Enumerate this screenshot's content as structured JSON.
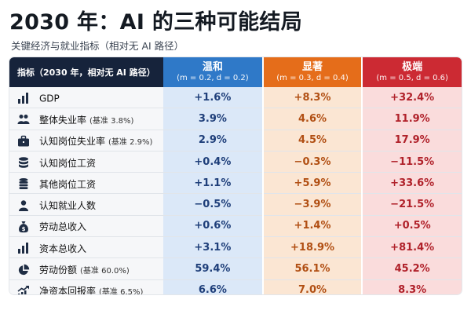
{
  "title": "2030 年：AI 的三种可能结局",
  "subtitle": "关键经济与就业指标（相对无 AI 路径）",
  "table": {
    "indicator_header": "指标（2030 年，相对无 AI 路径）",
    "scenarios": [
      {
        "name": "温和",
        "param": "(m = 0.2, d = 0.2)",
        "color": "#2f79c8"
      },
      {
        "name": "显著",
        "param": "(m = 0.3, d = 0.4)",
        "color": "#e56d1a"
      },
      {
        "name": "极端",
        "param": "(m = 0.5, d = 0.6)",
        "color": "#cc2a33"
      }
    ],
    "rows": [
      {
        "icon": "bar-chart-icon",
        "label": "GDP",
        "base": "",
        "values": [
          "+1.6%",
          "+8.3%",
          "+32.4%"
        ]
      },
      {
        "icon": "people-icon",
        "label": "整体失业率",
        "base": "(基准 3.8%)",
        "values": [
          "3.9%",
          "4.6%",
          "11.9%"
        ]
      },
      {
        "icon": "briefcase-icon",
        "label": "认知岗位失业率",
        "base": "(基准 2.9%)",
        "values": [
          "2.9%",
          "4.5%",
          "17.9%"
        ]
      },
      {
        "icon": "coins-icon",
        "label": "认知岗位工资",
        "base": "",
        "values": [
          "+0.4%",
          "−0.3%",
          "−11.5%"
        ]
      },
      {
        "icon": "coin-stack-icon",
        "label": "其他岗位工资",
        "base": "",
        "values": [
          "+1.1%",
          "+5.9%",
          "+33.6%"
        ]
      },
      {
        "icon": "person-icon",
        "label": "认知就业人数",
        "base": "",
        "values": [
          "−0.5%",
          "−3.9%",
          "−21.5%"
        ]
      },
      {
        "icon": "money-bag-icon",
        "label": "劳动总收入",
        "base": "",
        "values": [
          "+0.6%",
          "+1.4%",
          "+0.5%"
        ]
      },
      {
        "icon": "bar-chart-icon",
        "label": "资本总收入",
        "base": "",
        "values": [
          "+3.1%",
          "+18.9%",
          "+81.4%"
        ]
      },
      {
        "icon": "pie-chart-icon",
        "label": "劳动份额",
        "base": "(基准 60.0%)",
        "values": [
          "59.4%",
          "56.1%",
          "45.2%"
        ]
      },
      {
        "icon": "trend-up-icon",
        "label": "净资本回报率",
        "base": "(基准 6.5%)",
        "values": [
          "6.6%",
          "7.0%",
          "8.3%"
        ]
      }
    ]
  }
}
